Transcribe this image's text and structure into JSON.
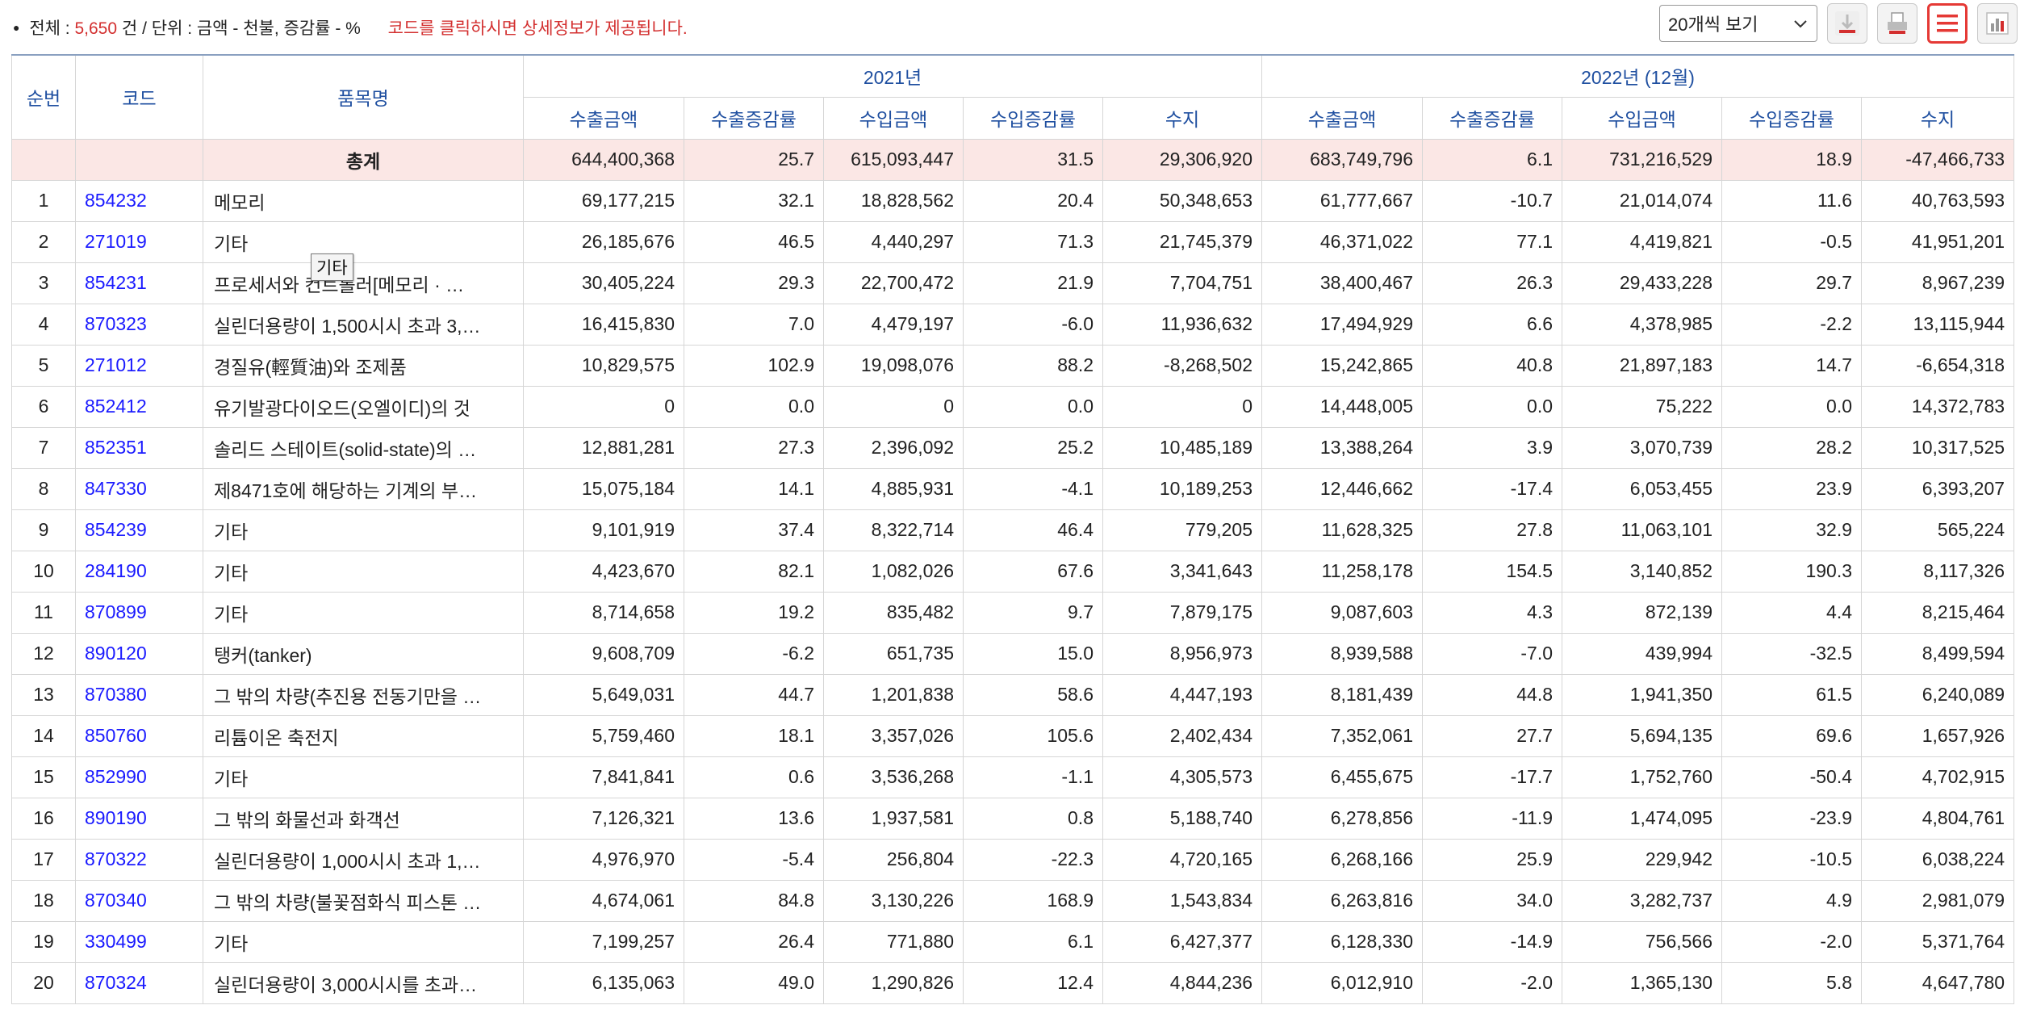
{
  "summary": {
    "total_label": "전체",
    "sep1": ":",
    "total_count": "5,650",
    "count_unit": "건",
    "slash": "/",
    "unit_label": "단위",
    "sep2": ":",
    "unit_value": "금액 - 천불, 증감률 - %",
    "notice": "코드를 클릭하시면 상세정보가 제공됩니다."
  },
  "controls": {
    "page_size": "20개씩 보기",
    "buttons": [
      "download-icon",
      "print-icon",
      "list-view-icon",
      "chart-view-icon"
    ],
    "active_color": "#e53935"
  },
  "header": {
    "rank": "순번",
    "code": "코드",
    "name": "품목명",
    "year1": "2021년",
    "year2": "2022년 (12월)",
    "subcols": [
      "수출금액",
      "수출증감률",
      "수입금액",
      "수입증감률",
      "수지"
    ]
  },
  "total": {
    "label": "총계",
    "values": [
      "644,400,368",
      "25.7",
      "615,093,447",
      "31.5",
      "29,306,920",
      "683,749,796",
      "6.1",
      "731,216,529",
      "18.9",
      "-47,466,733"
    ]
  },
  "rows": [
    {
      "rank": "1",
      "code": "854232",
      "name": "메모리",
      "values": [
        "69,177,215",
        "32.1",
        "18,828,562",
        "20.4",
        "50,348,653",
        "61,777,667",
        "-10.7",
        "21,014,074",
        "11.6",
        "40,763,593"
      ]
    },
    {
      "rank": "2",
      "code": "271019",
      "name": "기타",
      "values": [
        "26,185,676",
        "46.5",
        "4,440,297",
        "71.3",
        "21,745,379",
        "46,371,022",
        "77.1",
        "4,419,821",
        "-0.5",
        "41,951,201"
      ]
    },
    {
      "rank": "3",
      "code": "854231",
      "name": "프로세서와 컨트롤러[메모리 · …",
      "values": [
        "30,405,224",
        "29.3",
        "22,700,472",
        "21.9",
        "7,704,751",
        "38,400,467",
        "26.3",
        "29,433,228",
        "29.7",
        "8,967,239"
      ]
    },
    {
      "rank": "4",
      "code": "870323",
      "name": "실린더용량이 1,500시시 초과 3,…",
      "values": [
        "16,415,830",
        "7.0",
        "4,479,197",
        "-6.0",
        "11,936,632",
        "17,494,929",
        "6.6",
        "4,378,985",
        "-2.2",
        "13,115,944"
      ]
    },
    {
      "rank": "5",
      "code": "271012",
      "name": "경질유(輕質油)와 조제품",
      "values": [
        "10,829,575",
        "102.9",
        "19,098,076",
        "88.2",
        "-8,268,502",
        "15,242,865",
        "40.8",
        "21,897,183",
        "14.7",
        "-6,654,318"
      ]
    },
    {
      "rank": "6",
      "code": "852412",
      "name": "유기발광다이오드(오엘이디)의 것",
      "values": [
        "0",
        "0.0",
        "0",
        "0.0",
        "0",
        "14,448,005",
        "0.0",
        "75,222",
        "0.0",
        "14,372,783"
      ]
    },
    {
      "rank": "7",
      "code": "852351",
      "name": "솔리드 스테이트(solid-state)의 …",
      "values": [
        "12,881,281",
        "27.3",
        "2,396,092",
        "25.2",
        "10,485,189",
        "13,388,264",
        "3.9",
        "3,070,739",
        "28.2",
        "10,317,525"
      ]
    },
    {
      "rank": "8",
      "code": "847330",
      "name": "제8471호에 해당하는 기계의 부…",
      "values": [
        "15,075,184",
        "14.1",
        "4,885,931",
        "-4.1",
        "10,189,253",
        "12,446,662",
        "-17.4",
        "6,053,455",
        "23.9",
        "6,393,207"
      ]
    },
    {
      "rank": "9",
      "code": "854239",
      "name": "기타",
      "values": [
        "9,101,919",
        "37.4",
        "8,322,714",
        "46.4",
        "779,205",
        "11,628,325",
        "27.8",
        "11,063,101",
        "32.9",
        "565,224"
      ]
    },
    {
      "rank": "10",
      "code": "284190",
      "name": "기타",
      "values": [
        "4,423,670",
        "82.1",
        "1,082,026",
        "67.6",
        "3,341,643",
        "11,258,178",
        "154.5",
        "3,140,852",
        "190.3",
        "8,117,326"
      ]
    },
    {
      "rank": "11",
      "code": "870899",
      "name": "기타",
      "values": [
        "8,714,658",
        "19.2",
        "835,482",
        "9.7",
        "7,879,175",
        "9,087,603",
        "4.3",
        "872,139",
        "4.4",
        "8,215,464"
      ]
    },
    {
      "rank": "12",
      "code": "890120",
      "name": "탱커(tanker)",
      "values": [
        "9,608,709",
        "-6.2",
        "651,735",
        "15.0",
        "8,956,973",
        "8,939,588",
        "-7.0",
        "439,994",
        "-32.5",
        "8,499,594"
      ]
    },
    {
      "rank": "13",
      "code": "870380",
      "name": "그 밖의 차량(추진용 전동기만을 …",
      "values": [
        "5,649,031",
        "44.7",
        "1,201,838",
        "58.6",
        "4,447,193",
        "8,181,439",
        "44.8",
        "1,941,350",
        "61.5",
        "6,240,089"
      ]
    },
    {
      "rank": "14",
      "code": "850760",
      "name": "리튬이온 축전지",
      "values": [
        "5,759,460",
        "18.1",
        "3,357,026",
        "105.6",
        "2,402,434",
        "7,352,061",
        "27.7",
        "5,694,135",
        "69.6",
        "1,657,926"
      ]
    },
    {
      "rank": "15",
      "code": "852990",
      "name": "기타",
      "values": [
        "7,841,841",
        "0.6",
        "3,536,268",
        "-1.1",
        "4,305,573",
        "6,455,675",
        "-17.7",
        "1,752,760",
        "-50.4",
        "4,702,915"
      ]
    },
    {
      "rank": "16",
      "code": "890190",
      "name": "그 밖의 화물선과 화객선",
      "values": [
        "7,126,321",
        "13.6",
        "1,937,581",
        "0.8",
        "5,188,740",
        "6,278,856",
        "-11.9",
        "1,474,095",
        "-23.9",
        "4,804,761"
      ]
    },
    {
      "rank": "17",
      "code": "870322",
      "name": "실린더용량이 1,000시시 초과 1,…",
      "values": [
        "4,976,970",
        "-5.4",
        "256,804",
        "-22.3",
        "4,720,165",
        "6,268,166",
        "25.9",
        "229,942",
        "-10.5",
        "6,038,224"
      ]
    },
    {
      "rank": "18",
      "code": "870340",
      "name": "그 밖의 차량(불꽃점화식 피스톤 …",
      "values": [
        "4,674,061",
        "84.8",
        "3,130,226",
        "168.9",
        "1,543,834",
        "6,263,816",
        "34.0",
        "3,282,737",
        "4.9",
        "2,981,079"
      ]
    },
    {
      "rank": "19",
      "code": "330499",
      "name": "기타",
      "values": [
        "7,199,257",
        "26.4",
        "771,880",
        "6.1",
        "6,427,377",
        "6,128,330",
        "-14.9",
        "756,566",
        "-2.0",
        "5,371,764"
      ]
    },
    {
      "rank": "20",
      "code": "870324",
      "name": "실린더용량이 3,000시시를 초과…",
      "values": [
        "6,135,063",
        "49.0",
        "1,290,826",
        "12.4",
        "4,844,236",
        "6,012,910",
        "-2.0",
        "1,365,130",
        "5.8",
        "4,647,780"
      ]
    }
  ],
  "tooltip": {
    "text": "기타"
  }
}
